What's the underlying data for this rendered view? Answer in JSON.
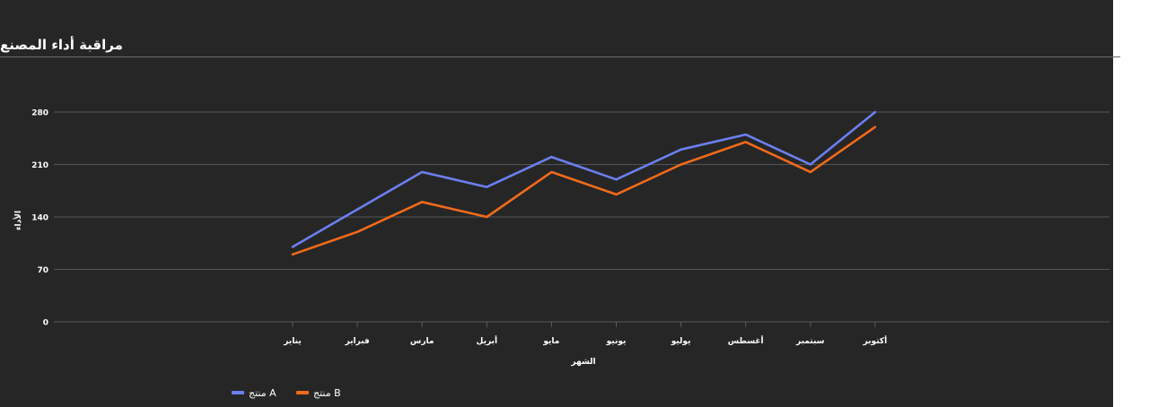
{
  "title": "مراقبة أداء المصنع",
  "chart_data": {
    "type": "line",
    "title": "مراقبة أداء المصنع",
    "xlabel": "الشهر",
    "ylabel": "الأداء",
    "categories": [
      "يناير",
      "فبراير",
      "مارس",
      "أبريل",
      "مايو",
      "يونيو",
      "يوليو",
      "أغسطس",
      "سبتمبر",
      "أكتوبر"
    ],
    "yticks": [
      0,
      70,
      140,
      210,
      280
    ],
    "ylim": [
      0,
      280
    ],
    "grid": true,
    "legend_position": "bottom-left",
    "series": [
      {
        "name": "منتج A",
        "color": "#6b7ff0",
        "values": [
          100,
          150,
          200,
          180,
          220,
          190,
          230,
          250,
          210,
          280
        ]
      },
      {
        "name": "منتج B",
        "color": "#f26a1b",
        "values": [
          90,
          120,
          160,
          140,
          200,
          170,
          210,
          240,
          200,
          260
        ]
      }
    ]
  }
}
